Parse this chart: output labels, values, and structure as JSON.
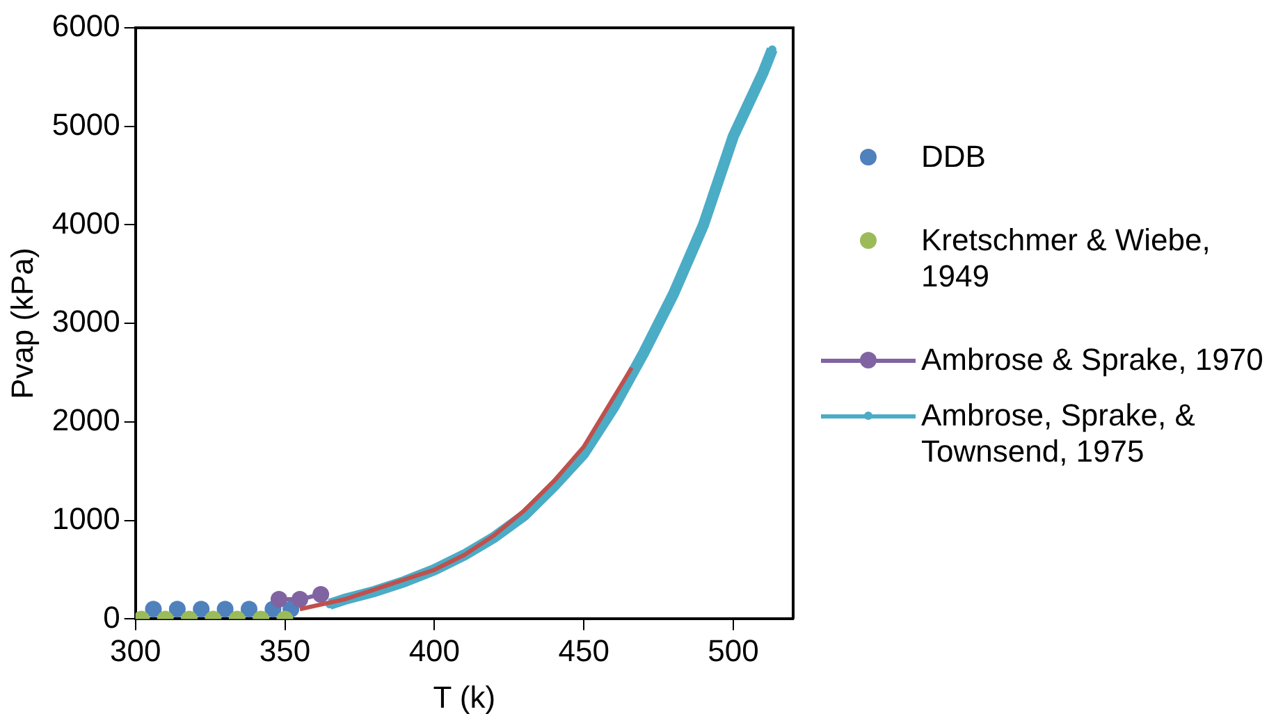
{
  "chart_data": {
    "type": "scatter",
    "xlabel": "T (k)",
    "ylabel": "Pvap (kPa)",
    "xlim": [
      300,
      520
    ],
    "xticks": [
      300,
      350,
      400,
      450,
      500
    ],
    "ylim": [
      0,
      6000
    ],
    "yticks": [
      0,
      1000,
      2000,
      3000,
      4000,
      5000,
      6000
    ],
    "grid": false,
    "legend": "right",
    "series": [
      {
        "name": "DDB",
        "type": "scatter",
        "marker": "circle",
        "color": "#4f81bd",
        "x": [
          306,
          314,
          322,
          330,
          338,
          346,
          352
        ],
        "values": [
          100,
          100,
          100,
          100,
          100,
          100,
          100
        ]
      },
      {
        "name": "Kretschmer & Wiebe, 1949",
        "type": "scatter",
        "marker": "circle",
        "color": "#9bbb59",
        "x": [
          302,
          310,
          318,
          326,
          334,
          342,
          350
        ],
        "values": [
          0,
          0,
          0,
          0,
          0,
          0,
          0
        ]
      },
      {
        "name": "Ambrose & Sprake, 1970",
        "type": "line",
        "marker": "circle",
        "color": "#8064a2",
        "x": [
          348,
          355,
          362
        ],
        "values": [
          200,
          200,
          250
        ]
      },
      {
        "name": "Ambrose, Sprake, & Townsend, 1975",
        "type": "line",
        "marker": "circle",
        "color": "#4bacc6",
        "x": [
          365,
          370,
          380,
          390,
          400,
          410,
          420,
          430,
          440,
          450,
          460,
          470,
          480,
          490,
          500,
          510,
          513
        ],
        "values": [
          150,
          200,
          280,
          380,
          500,
          650,
          830,
          1050,
          1350,
          1680,
          2150,
          2700,
          3300,
          4000,
          4900,
          5550,
          5780
        ]
      },
      {
        "type": "line",
        "marker": "none",
        "color": "#c0504d",
        "x": [
          355,
          370,
          380,
          390,
          400,
          410,
          420,
          430,
          440,
          450,
          460,
          466
        ],
        "values": [
          100,
          200,
          300,
          400,
          500,
          650,
          850,
          1100,
          1400,
          1750,
          2250,
          2550
        ]
      }
    ]
  }
}
